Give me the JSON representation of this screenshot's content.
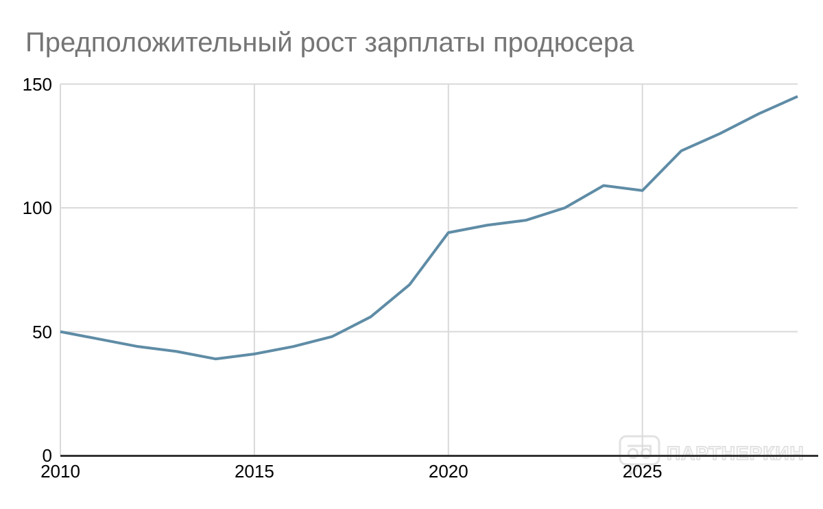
{
  "title": "Предположительный рост зарплаты продюсера",
  "chart_data": {
    "type": "line",
    "title": "Предположительный рост зарплаты продюсера",
    "x": [
      2010,
      2011,
      2012,
      2013,
      2014,
      2015,
      2016,
      2017,
      2018,
      2019,
      2020,
      2021,
      2022,
      2023,
      2024,
      2025,
      2026,
      2027,
      2028,
      2029
    ],
    "values": [
      50,
      47,
      44,
      42,
      39,
      41,
      44,
      48,
      56,
      69,
      90,
      93,
      95,
      100,
      109,
      107,
      123,
      130,
      138,
      145
    ],
    "xlabel": "",
    "ylabel": "",
    "xlim": [
      2010,
      2029
    ],
    "ylim": [
      0,
      150
    ],
    "y_ticks": [
      0,
      50,
      100,
      150
    ],
    "y_tick_labels": [
      "0",
      "50",
      "100",
      "150"
    ],
    "x_gridline_years": [
      2010,
      2015,
      2020,
      2025
    ],
    "x_tick_labels": [
      "2010",
      "2015",
      "2020",
      "2025"
    ],
    "grid": true,
    "legend": false,
    "marker": false
  },
  "colors": {
    "line": "#5f8ca6",
    "grid": "#d9d9d9",
    "axis": "#333333",
    "title": "#757575",
    "tick": "#000000",
    "watermark": "#e2e2e2"
  },
  "watermark": {
    "logo_icon": "speech-bubble-logo",
    "text": "ПАРТНЕРКИН"
  }
}
